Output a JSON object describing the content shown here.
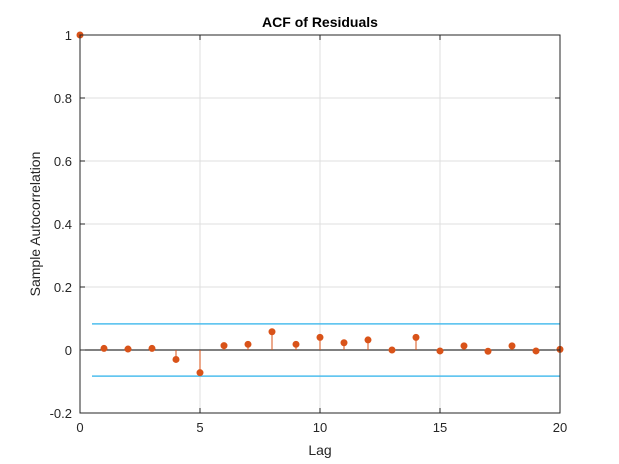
{
  "chart_data": {
    "type": "stem",
    "title": "ACF of Residuals",
    "xlabel": "Lag",
    "ylabel": "Sample Autocorrelation",
    "xlim": [
      0,
      20
    ],
    "ylim": [
      -0.2,
      1
    ],
    "xticks": [
      "0",
      "5",
      "10",
      "15",
      "20"
    ],
    "yticks": [
      "-0.2",
      "0",
      "0.2",
      "0.4",
      "0.6",
      "0.8",
      "1"
    ],
    "grid": true,
    "lags": [
      0,
      1,
      2,
      3,
      4,
      5,
      6,
      7,
      8,
      9,
      10,
      11,
      12,
      13,
      14,
      15,
      16,
      17,
      18,
      19,
      20
    ],
    "values": [
      1.0,
      0.005,
      0.003,
      0.005,
      -0.03,
      -0.072,
      0.014,
      0.018,
      0.058,
      0.018,
      0.04,
      0.023,
      0.032,
      0.0,
      0.04,
      -0.003,
      0.013,
      -0.004,
      0.013,
      -0.003,
      0.002
    ],
    "confidence_bound": 0.083,
    "confidence_xrange": [
      0.5,
      20
    ],
    "colors": {
      "stem": "#d95319",
      "bounds": "#4dbeee",
      "zero_line": "#000000",
      "grid": "#dfdfdf",
      "axis": "#262626"
    }
  }
}
